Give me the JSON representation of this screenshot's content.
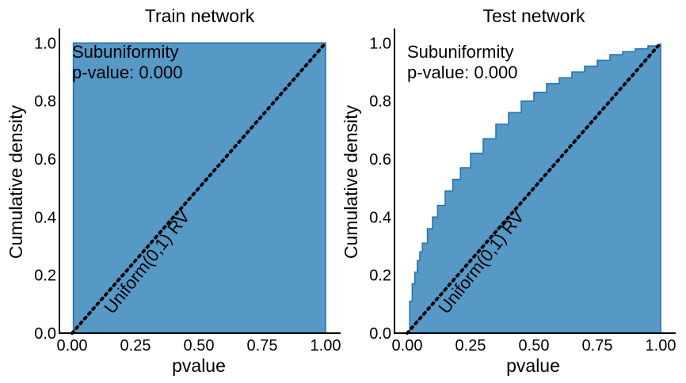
{
  "colors": {
    "fill": "#5698c6",
    "edge": "#2a74ad",
    "reference_line": "#000000",
    "axes": "#000000"
  },
  "chart_data": [
    {
      "type": "area",
      "subtype": "cumulative-step-histogram",
      "title": "Train network",
      "xlabel": "pvalue",
      "ylabel": "Cumulative density",
      "xlim": [
        0,
        1
      ],
      "ylim": [
        0,
        1.05
      ],
      "xticks": [
        "0.00",
        "0.25",
        "0.50",
        "0.75",
        "1.00"
      ],
      "yticks": [
        "0.0",
        "0.2",
        "0.4",
        "0.6",
        "0.8",
        "1.0"
      ],
      "grid": false,
      "annotation": [
        "Subuniformity",
        "p-value: 0.000"
      ],
      "reference_line": {
        "label": "Uniform(0,1) RV",
        "x": [
          0,
          1
        ],
        "y": [
          0,
          1
        ],
        "style": "dotted"
      },
      "x": [
        0.0,
        0.005,
        1.0
      ],
      "y": [
        0.0,
        1.0,
        1.0
      ]
    },
    {
      "type": "area",
      "subtype": "cumulative-step-histogram",
      "title": "Test network",
      "xlabel": "pvalue",
      "ylabel": "Cumulative density",
      "xlim": [
        0,
        1
      ],
      "ylim": [
        0,
        1.05
      ],
      "xticks": [
        "0.00",
        "0.25",
        "0.50",
        "0.75",
        "1.00"
      ],
      "yticks": [
        "0.0",
        "0.2",
        "0.4",
        "0.6",
        "0.8",
        "1.0"
      ],
      "grid": false,
      "annotation": [
        "Subuniformity",
        "p-value: 0.000"
      ],
      "reference_line": {
        "label": "Uniform(0,1) RV",
        "x": [
          0,
          1
        ],
        "y": [
          0,
          1
        ],
        "style": "dotted"
      },
      "x": [
        0.0,
        0.01,
        0.02,
        0.03,
        0.04,
        0.05,
        0.06,
        0.08,
        0.1,
        0.12,
        0.15,
        0.18,
        0.21,
        0.25,
        0.3,
        0.35,
        0.4,
        0.45,
        0.5,
        0.55,
        0.6,
        0.65,
        0.7,
        0.75,
        0.8,
        0.85,
        0.9,
        0.95,
        1.0
      ],
      "y": [
        0.0,
        0.11,
        0.17,
        0.21,
        0.25,
        0.28,
        0.31,
        0.36,
        0.4,
        0.44,
        0.49,
        0.53,
        0.57,
        0.62,
        0.67,
        0.72,
        0.76,
        0.8,
        0.83,
        0.86,
        0.88,
        0.9,
        0.92,
        0.94,
        0.96,
        0.97,
        0.98,
        0.99,
        1.0
      ]
    }
  ]
}
